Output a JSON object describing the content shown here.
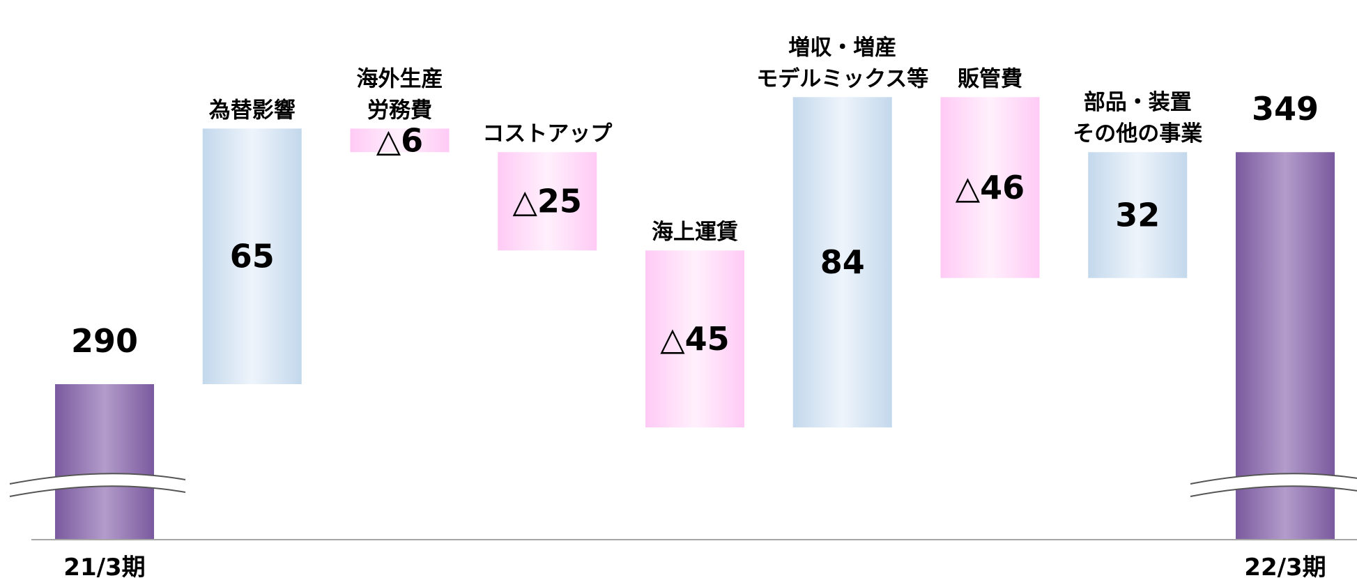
{
  "chart_data": {
    "type": "bar",
    "subtype": "waterfall",
    "axis_break": true,
    "colors": {
      "total": "#7a5a9e",
      "total_highlight": "#b39ccb",
      "increase": "#c3d8ec",
      "increase_highlight": "#eef4fb",
      "decrease": "#ffcaf5",
      "decrease_highlight": "#fff0fc",
      "baseline": "#a6a6a6"
    },
    "bars": [
      {
        "id": "start",
        "kind": "total",
        "label": "",
        "sublabel": "21/3期",
        "value": 290,
        "display": "290"
      },
      {
        "id": "fx",
        "kind": "increase",
        "label": [
          "為替影響"
        ],
        "value": 65,
        "display": "65"
      },
      {
        "id": "labor",
        "kind": "decrease",
        "label": [
          "海外生産",
          "労務費"
        ],
        "value": -6,
        "display": "△6"
      },
      {
        "id": "cost",
        "kind": "decrease",
        "label": [
          "コストアップ"
        ],
        "value": -25,
        "display": "△25"
      },
      {
        "id": "freight",
        "kind": "decrease",
        "label": [
          "海上運賃"
        ],
        "value": -45,
        "display": "△45"
      },
      {
        "id": "sales",
        "kind": "increase",
        "label": [
          "増収・増産",
          "モデルミックス等"
        ],
        "value": 84,
        "display": "84"
      },
      {
        "id": "sga",
        "kind": "decrease",
        "label": [
          "販管費"
        ],
        "value": -46,
        "display": "△46"
      },
      {
        "id": "parts",
        "kind": "increase",
        "label": [
          "部品・装置",
          "その他の事業"
        ],
        "value": 32,
        "display": "32"
      },
      {
        "id": "end",
        "kind": "total",
        "label": "",
        "sublabel": "22/3期",
        "value": 349,
        "display": "349"
      }
    ]
  }
}
